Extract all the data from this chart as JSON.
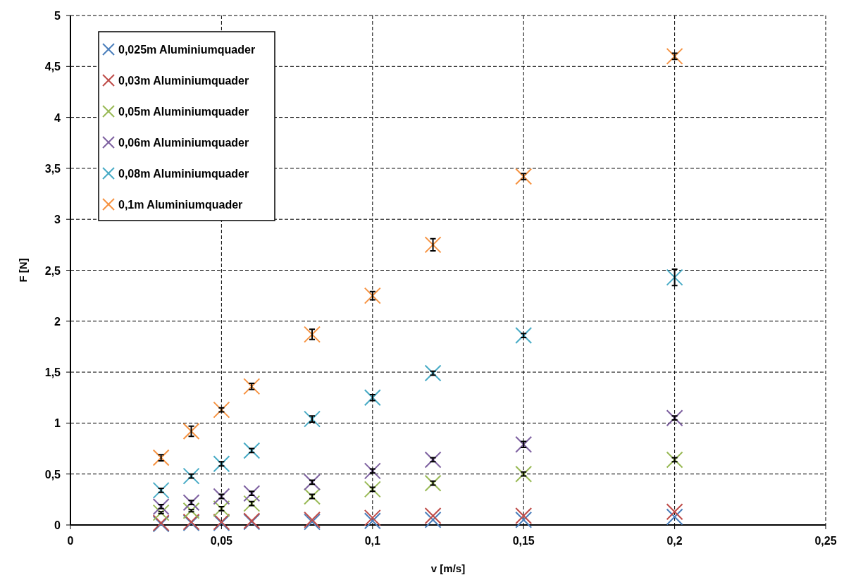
{
  "chart_data": {
    "type": "scatter",
    "xlabel": "v [m/s]",
    "ylabel": "F [N]",
    "marker": "cross",
    "grid": true,
    "legend": "top left",
    "x": [
      0.03,
      0.04,
      0.05,
      0.06,
      0.08,
      0.1,
      0.12,
      0.15,
      0.2
    ],
    "xlim": [
      0,
      0.25
    ],
    "xticks": [
      0,
      {
        "value": 0.05,
        "label": "0,05"
      },
      {
        "value": 0.1,
        "label": "0,1"
      },
      {
        "value": 0.15,
        "label": "0,15"
      },
      {
        "value": 0.2,
        "label": "0,2"
      },
      {
        "value": 0.25,
        "label": "0,25"
      }
    ],
    "ylim": [
      0,
      5
    ],
    "yticks": [
      0,
      {
        "value": 0.5,
        "label": "0,5"
      },
      1,
      {
        "value": 1.5,
        "label": "1,5"
      },
      2,
      {
        "value": 2.5,
        "label": "2,5"
      },
      3,
      {
        "value": 3.5,
        "label": "3,5"
      },
      4,
      {
        "value": 4.5,
        "label": "4,5"
      },
      5
    ],
    "series": [
      {
        "name": "0,025m Aluminiumquader",
        "color": "#4a7ebb",
        "values": [
          0.01,
          0.02,
          0.02,
          0.03,
          0.03,
          0.04,
          0.05,
          0.05,
          0.08
        ]
      },
      {
        "name": "0,03m Aluminiumquader",
        "color": "#be4b48",
        "values": [
          0.02,
          0.03,
          0.03,
          0.04,
          0.05,
          0.07,
          0.09,
          0.09,
          0.13
        ]
      },
      {
        "name": "0,05m Aluminiumquader",
        "color": "#98b954",
        "values": [
          0.12,
          0.14,
          0.16,
          0.21,
          0.28,
          0.35,
          0.41,
          0.5,
          0.64
        ],
        "errors": [
          0.01,
          0.01,
          0.02,
          0.02,
          0.02,
          0.02,
          0.02,
          0.02,
          0.02
        ]
      },
      {
        "name": "0,06m Aluminiumquader",
        "color": "#7d60a0",
        "values": [
          0.18,
          0.22,
          0.28,
          0.31,
          0.42,
          0.53,
          0.64,
          0.79,
          1.05
        ],
        "errors": [
          0.02,
          0.02,
          0.02,
          0.02,
          0.02,
          0.02,
          0.02,
          0.03,
          0.02
        ]
      },
      {
        "name": "0,08m Aluminiumquader",
        "color": "#46aac5",
        "values": [
          0.34,
          0.48,
          0.6,
          0.73,
          1.04,
          1.25,
          1.49,
          1.86,
          2.43
        ],
        "errors": [
          0.02,
          0.02,
          0.02,
          0.02,
          0.03,
          0.03,
          0.02,
          0.02,
          0.08
        ]
      },
      {
        "name": "0,1m Aluminiumquader",
        "color": "#f69240",
        "values": [
          0.66,
          0.92,
          1.13,
          1.36,
          1.87,
          2.25,
          2.75,
          3.42,
          4.6
        ],
        "errors": [
          0.03,
          0.05,
          0.02,
          0.03,
          0.05,
          0.04,
          0.06,
          0.03,
          0.03
        ]
      }
    ]
  }
}
